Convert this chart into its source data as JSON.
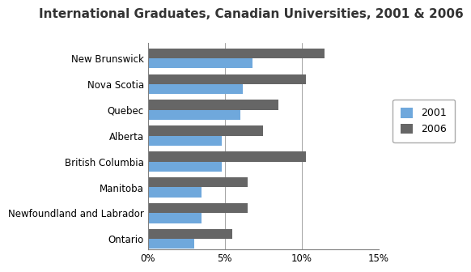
{
  "title": "International Graduates, Canadian Universities, 2001 & 2006",
  "provinces": [
    "New Brunswick",
    "Nova Scotia",
    "Quebec",
    "Alberta",
    "British Columbia",
    "Manitoba",
    "Newfoundland and Labrador",
    "Ontario"
  ],
  "values_2001": [
    6.8,
    6.2,
    6.0,
    4.8,
    4.8,
    3.5,
    3.5,
    3.0
  ],
  "values_2006": [
    11.5,
    10.3,
    8.5,
    7.5,
    10.3,
    6.5,
    6.5,
    5.5
  ],
  "color_2001": "#6FA8DC",
  "color_2006": "#666666",
  "xlim": [
    0,
    15
  ],
  "xticks": [
    0,
    5,
    10,
    15
  ],
  "xticklabels": [
    "0%",
    "5%",
    "10%",
    "15%"
  ],
  "legend_labels": [
    "2001",
    "2006"
  ],
  "background_color": "#ffffff",
  "title_fontsize": 11,
  "tick_fontsize": 8.5,
  "legend_fontsize": 9
}
